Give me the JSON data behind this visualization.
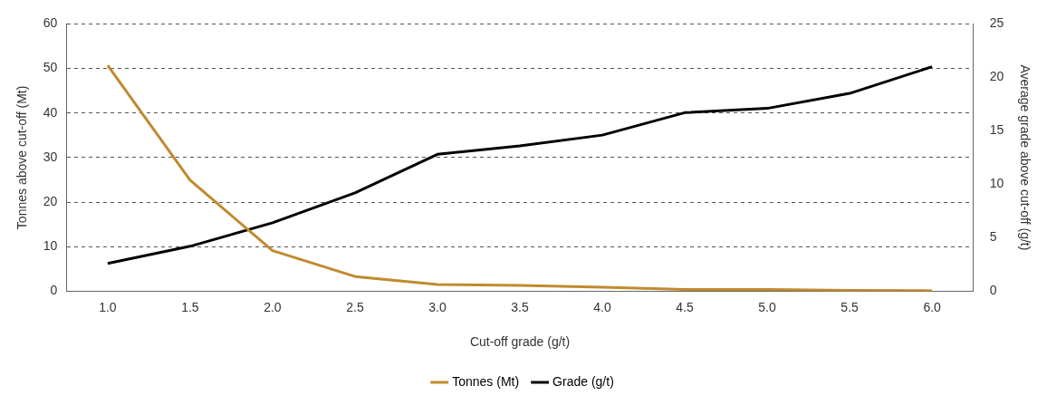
{
  "chart_data": {
    "type": "line",
    "xlabel": "Cut-off grade (g/t)",
    "ylabel": "Tonnes above cut-off (Mt)",
    "y2label": "Average grade above cut-off (g/t)",
    "categories": [
      "1.0",
      "1.5",
      "2.0",
      "2.5",
      "3.0",
      "3.5",
      "4.0",
      "4.5",
      "5.0",
      "5.5",
      "6.0"
    ],
    "series": [
      {
        "name": "Tonnes (Mt)",
        "color": "#c08a2e",
        "values": [
          50.7,
          24.9,
          9.1,
          3.3,
          1.5,
          1.3,
          0.9,
          0.4,
          0.4,
          0.2,
          0.1
        ]
      },
      {
        "name": "Grade (g/t)",
        "color": "#000000",
        "axis": "y2",
        "values": [
          2.6,
          4.2,
          6.4,
          9.2,
          12.8,
          13.6,
          14.6,
          16.7,
          17.1,
          18.5,
          21.0
        ]
      }
    ],
    "ylim": [
      0,
      60
    ],
    "yticks": [
      0,
      10,
      20,
      30,
      40,
      50,
      60
    ],
    "y2lim": [
      0,
      25
    ],
    "y2ticks": [
      0,
      5,
      10,
      15,
      20,
      25
    ],
    "grid": "y",
    "legend": "bottom",
    "marker": "none",
    "line_style": "solid"
  }
}
